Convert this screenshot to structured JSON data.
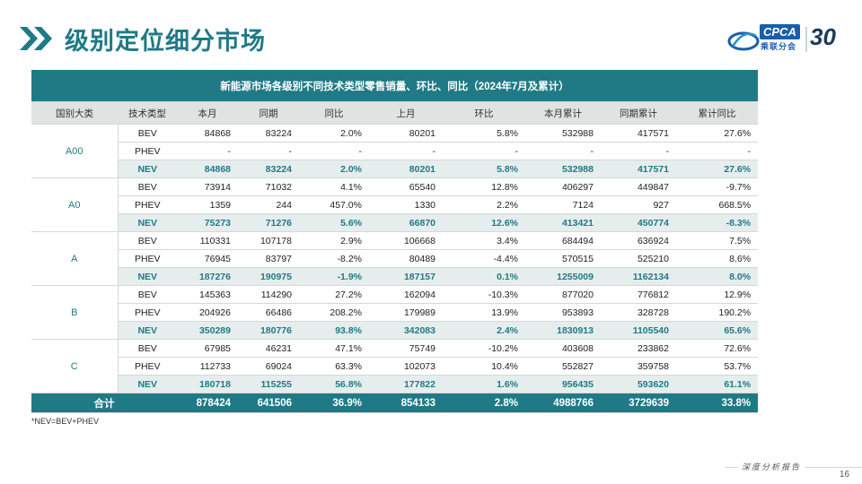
{
  "header": {
    "title": "级别定位细分市场",
    "logo_text": "CPCA",
    "logo_sub": "乘联分会",
    "anniversary": "30"
  },
  "table": {
    "caption": "新能源市场各级别不同技术类型零售销量、环比、同比（2024年7月及累计）",
    "columns": [
      "国别大类",
      "技术类型",
      "本月",
      "同期",
      "同比",
      "上月",
      "环比",
      "本月累计",
      "同期累计",
      "累计同比"
    ],
    "groups": [
      {
        "name": "A00",
        "rows": [
          [
            "BEV",
            "84868",
            "83224",
            "2.0%",
            "80201",
            "5.8%",
            "532988",
            "417571",
            "27.6%"
          ],
          [
            "PHEV",
            "-",
            "-",
            "-",
            "-",
            "-",
            "-",
            "-",
            "-"
          ],
          [
            "NEV",
            "84868",
            "83224",
            "2.0%",
            "80201",
            "5.8%",
            "532988",
            "417571",
            "27.6%"
          ]
        ]
      },
      {
        "name": "A0",
        "rows": [
          [
            "BEV",
            "73914",
            "71032",
            "4.1%",
            "65540",
            "12.8%",
            "406297",
            "449847",
            "-9.7%"
          ],
          [
            "PHEV",
            "1359",
            "244",
            "457.0%",
            "1330",
            "2.2%",
            "7124",
            "927",
            "668.5%"
          ],
          [
            "NEV",
            "75273",
            "71276",
            "5.6%",
            "66870",
            "12.6%",
            "413421",
            "450774",
            "-8.3%"
          ]
        ]
      },
      {
        "name": "A",
        "rows": [
          [
            "BEV",
            "110331",
            "107178",
            "2.9%",
            "106668",
            "3.4%",
            "684494",
            "636924",
            "7.5%"
          ],
          [
            "PHEV",
            "76945",
            "83797",
            "-8.2%",
            "80489",
            "-4.4%",
            "570515",
            "525210",
            "8.6%"
          ],
          [
            "NEV",
            "187276",
            "190975",
            "-1.9%",
            "187157",
            "0.1%",
            "1255009",
            "1162134",
            "8.0%"
          ]
        ]
      },
      {
        "name": "B",
        "rows": [
          [
            "BEV",
            "145363",
            "114290",
            "27.2%",
            "162094",
            "-10.3%",
            "877020",
            "776812",
            "12.9%"
          ],
          [
            "PHEV",
            "204926",
            "66486",
            "208.2%",
            "179989",
            "13.9%",
            "953893",
            "328728",
            "190.2%"
          ],
          [
            "NEV",
            "350289",
            "180776",
            "93.8%",
            "342083",
            "2.4%",
            "1830913",
            "1105540",
            "65.6%"
          ]
        ]
      },
      {
        "name": "C",
        "rows": [
          [
            "BEV",
            "67985",
            "46231",
            "47.1%",
            "75749",
            "-10.2%",
            "403608",
            "233862",
            "72.6%"
          ],
          [
            "PHEV",
            "112733",
            "69024",
            "63.3%",
            "102073",
            "10.4%",
            "552827",
            "359758",
            "53.7%"
          ],
          [
            "NEV",
            "180718",
            "115255",
            "56.8%",
            "177822",
            "1.6%",
            "956435",
            "593620",
            "61.1%"
          ]
        ]
      }
    ],
    "total": [
      "合计",
      "878424",
      "641506",
      "36.9%",
      "854133",
      "2.8%",
      "4988766",
      "3729639",
      "33.8%"
    ]
  },
  "footnote": "*NEV=BEV+PHEV",
  "footer": {
    "brand": "深度分析报告",
    "page_number": "16"
  },
  "colors": {
    "accent": "#1f7a86",
    "header_bg": "#e1e3e3",
    "nev_bg": "#e6eded"
  }
}
